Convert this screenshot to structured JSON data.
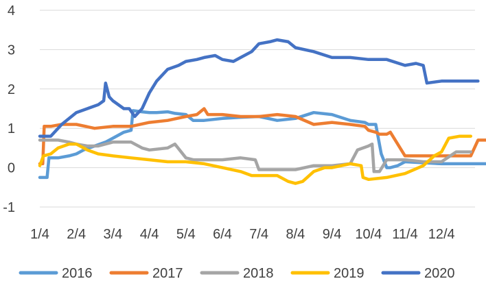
{
  "chart_data": {
    "type": "line",
    "title": "",
    "xlabel": "",
    "ylabel": "",
    "ylim": [
      -1,
      4
    ],
    "yticks": [
      -1,
      0,
      1,
      2,
      3,
      4
    ],
    "xticks": [
      "1/4",
      "2/4",
      "3/4",
      "4/4",
      "5/4",
      "6/4",
      "7/4",
      "8/4",
      "9/4",
      "10/4",
      "11/4",
      "12/4"
    ],
    "xlim": [
      0,
      12.3
    ],
    "grid": "horizontal",
    "legend": "bottom",
    "series": [
      {
        "name": "2016",
        "color": "#5b9bd5",
        "x": [
          0,
          0.2,
          0.25,
          0.5,
          0.8,
          1.0,
          1.2,
          1.5,
          1.8,
          2.0,
          2.3,
          2.5,
          2.55,
          2.8,
          3.0,
          3.2,
          3.5,
          3.7,
          4.0,
          4.2,
          4.5,
          5.0,
          5.5,
          6.0,
          6.5,
          7.0,
          7.5,
          8.0,
          8.5,
          8.9,
          9.0,
          9.2,
          9.35,
          9.5,
          9.6,
          9.8,
          10.0,
          11.0,
          12.0,
          12.3
        ],
        "y": [
          -0.25,
          -0.25,
          0.25,
          0.25,
          0.3,
          0.35,
          0.45,
          0.55,
          0.65,
          0.75,
          0.9,
          0.95,
          1.45,
          1.42,
          1.4,
          1.4,
          1.42,
          1.38,
          1.35,
          1.2,
          1.2,
          1.25,
          1.28,
          1.3,
          1.2,
          1.25,
          1.4,
          1.35,
          1.2,
          1.15,
          1.1,
          1.1,
          0.35,
          0.0,
          0.0,
          0.05,
          0.15,
          0.1,
          0.1,
          0.1
        ]
      },
      {
        "name": "2017",
        "color": "#ed7d31",
        "x": [
          0,
          0.08,
          0.12,
          0.3,
          0.6,
          1.0,
          1.5,
          2.0,
          2.5,
          3.0,
          3.5,
          4.0,
          4.3,
          4.5,
          4.6,
          5.0,
          5.5,
          6.0,
          6.5,
          7.0,
          7.5,
          8.0,
          8.5,
          8.9,
          9.0,
          9.2,
          9.3,
          9.5,
          9.6,
          10.0,
          10.5,
          11.0,
          11.5,
          11.8,
          12.0,
          12.3
        ],
        "y": [
          0.1,
          0.1,
          1.05,
          1.05,
          1.1,
          1.1,
          1.0,
          1.05,
          1.05,
          1.15,
          1.2,
          1.3,
          1.35,
          1.5,
          1.35,
          1.35,
          1.3,
          1.3,
          1.35,
          1.3,
          1.1,
          1.15,
          1.1,
          1.05,
          0.95,
          0.9,
          0.85,
          0.85,
          0.9,
          0.3,
          0.3,
          0.3,
          0.3,
          0.3,
          0.7,
          0.7
        ]
      },
      {
        "name": "2018",
        "color": "#a5a5a5",
        "x": [
          0,
          0.4,
          0.5,
          0.8,
          1.0,
          1.3,
          1.6,
          2.0,
          2.5,
          2.8,
          3.0,
          3.5,
          3.7,
          4.0,
          4.2,
          4.5,
          5.0,
          5.5,
          5.9,
          6.0,
          6.3,
          6.5,
          7.0,
          7.5,
          8.0,
          8.5,
          8.7,
          9.0,
          9.1,
          9.15,
          9.3,
          9.5,
          10.0,
          10.5,
          10.8,
          11.0,
          11.4,
          11.6,
          11.8
        ],
        "y": [
          0.7,
          0.7,
          0.7,
          0.65,
          0.6,
          0.55,
          0.55,
          0.65,
          0.65,
          0.5,
          0.45,
          0.5,
          0.6,
          0.25,
          0.2,
          0.2,
          0.2,
          0.25,
          0.2,
          -0.05,
          -0.05,
          -0.05,
          -0.05,
          0.05,
          0.05,
          0.1,
          0.45,
          0.55,
          0.6,
          -0.1,
          -0.1,
          0.2,
          0.2,
          0.15,
          0.15,
          0.15,
          0.4,
          0.4,
          0.4
        ]
      },
      {
        "name": "2019",
        "color": "#ffc000",
        "x": [
          0,
          0.1,
          0.3,
          0.5,
          0.8,
          1.0,
          1.3,
          1.6,
          2.0,
          2.5,
          3.0,
          3.5,
          4.0,
          4.5,
          5.0,
          5.5,
          5.8,
          6.0,
          6.5,
          6.8,
          7.0,
          7.2,
          7.5,
          7.8,
          8.0,
          8.5,
          8.8,
          8.85,
          9.0,
          9.5,
          10.0,
          10.5,
          10.8,
          11.0,
          11.2,
          11.5,
          11.8
        ],
        "y": [
          0.05,
          0.3,
          0.35,
          0.5,
          0.6,
          0.6,
          0.45,
          0.35,
          0.3,
          0.25,
          0.2,
          0.15,
          0.15,
          0.1,
          0.0,
          -0.1,
          -0.2,
          -0.2,
          -0.2,
          -0.35,
          -0.4,
          -0.35,
          -0.1,
          0.0,
          0.0,
          0.1,
          0.05,
          -0.25,
          -0.3,
          -0.25,
          -0.15,
          0.05,
          0.3,
          0.4,
          0.75,
          0.8,
          0.8
        ]
      },
      {
        "name": "2020",
        "color": "#4472c4",
        "x": [
          0,
          0.3,
          0.6,
          1.0,
          1.3,
          1.6,
          1.75,
          1.8,
          1.9,
          2.0,
          2.3,
          2.45,
          2.6,
          2.8,
          3.0,
          3.2,
          3.5,
          3.8,
          4.0,
          4.3,
          4.5,
          4.8,
          5.0,
          5.3,
          5.5,
          5.8,
          6.0,
          6.3,
          6.5,
          6.8,
          7.0,
          7.5,
          8.0,
          8.5,
          9.0,
          9.5,
          10.0,
          10.3,
          10.5,
          10.6,
          11.0,
          11.5,
          12.0
        ],
        "y": [
          0.8,
          0.8,
          1.1,
          1.4,
          1.5,
          1.6,
          1.7,
          2.15,
          1.8,
          1.7,
          1.5,
          1.5,
          1.3,
          1.5,
          1.9,
          2.2,
          2.5,
          2.6,
          2.7,
          2.75,
          2.8,
          2.85,
          2.75,
          2.7,
          2.8,
          2.95,
          3.15,
          3.2,
          3.25,
          3.2,
          3.05,
          2.95,
          2.8,
          2.8,
          2.75,
          2.75,
          2.6,
          2.65,
          2.6,
          2.15,
          2.2,
          2.2,
          2.2
        ]
      }
    ]
  }
}
